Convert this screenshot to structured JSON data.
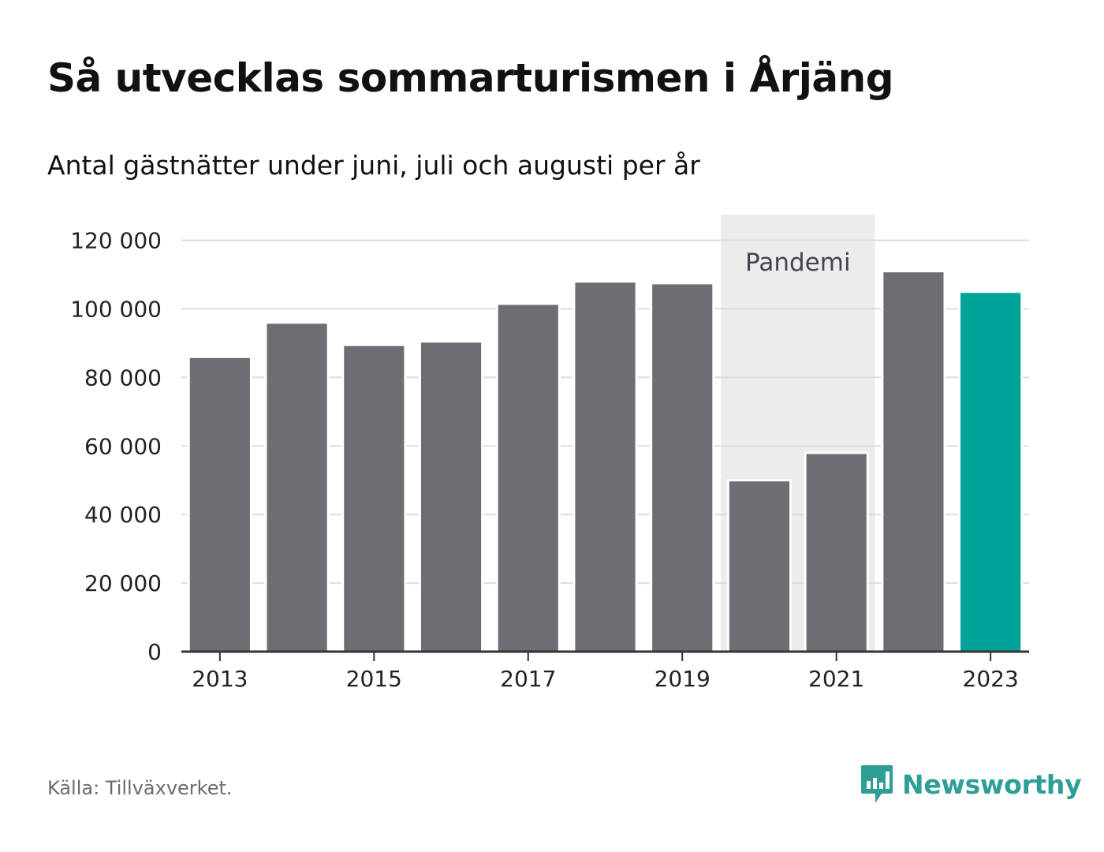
{
  "header": {
    "title": "Så utvecklas sommarturismen i Årjäng",
    "subtitle": "Antal gästnätter under juni, juli och augusti per år"
  },
  "footer": {
    "source": "Källa: Tillväxverket.",
    "brand": "Newsworthy",
    "brand_icon": "bar-chart-speech-bubble-icon",
    "brand_color": "#2e9e97"
  },
  "chart_data": {
    "type": "bar",
    "x": [
      2013,
      2014,
      2015,
      2016,
      2017,
      2018,
      2019,
      2020,
      2021,
      2022,
      2023
    ],
    "values": [
      86000,
      96000,
      89500,
      90500,
      101500,
      108000,
      107500,
      50000,
      58000,
      111000,
      105000
    ],
    "x_tick_labels": [
      "2013",
      "2015",
      "2017",
      "2019",
      "2021",
      "2023"
    ],
    "y_tick_labels": [
      "0",
      "20 000",
      "40 000",
      "60 000",
      "80 000",
      "100 000",
      "120 000"
    ],
    "ylim": [
      0,
      127500
    ],
    "grid": true,
    "annotation": {
      "label": "Pandemi",
      "x_start": 2020,
      "x_end": 2021
    },
    "colors": {
      "bar": "#6e6d73",
      "highlight_bar": "#00a39a",
      "band": "#ececec",
      "grid": "#dddddd",
      "axis": "#333333"
    },
    "highlight": [
      2023
    ]
  }
}
